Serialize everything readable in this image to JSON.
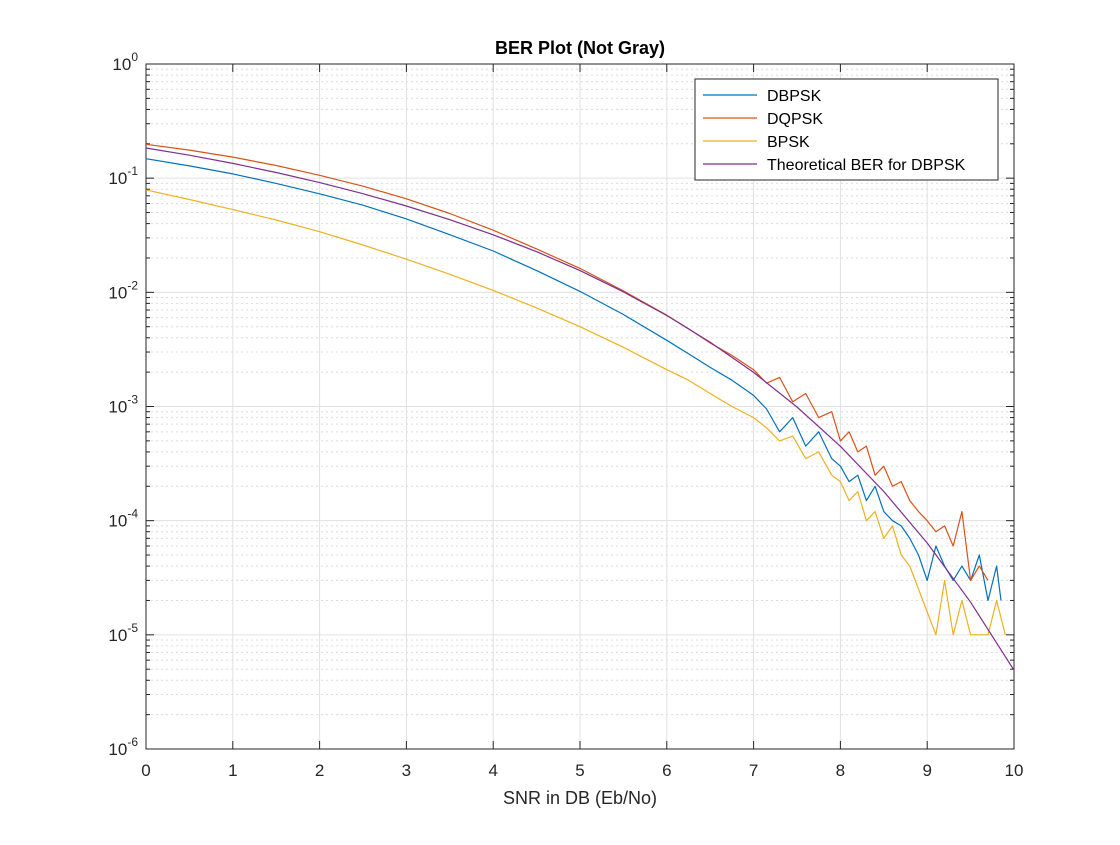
{
  "chart_data": {
    "type": "line",
    "title": "BER Plot (Not Gray)",
    "xlabel": "SNR in DB (Eb/No)",
    "ylabel": "",
    "xlim": [
      0,
      10
    ],
    "ylim": [
      1e-06,
      1
    ],
    "yscale": "log",
    "grid": true,
    "minor_grid": true,
    "legend_position": "top-right",
    "x_ticks": [
      "0",
      "1",
      "2",
      "3",
      "4",
      "5",
      "6",
      "7",
      "8",
      "9",
      "10"
    ],
    "y_ticks": [
      {
        "base": "10",
        "exp": "-6",
        "value": 1e-06
      },
      {
        "base": "10",
        "exp": "-5",
        "value": 1e-05
      },
      {
        "base": "10",
        "exp": "-4",
        "value": 0.0001
      },
      {
        "base": "10",
        "exp": "-3",
        "value": 0.001
      },
      {
        "base": "10",
        "exp": "-2",
        "value": 0.01
      },
      {
        "base": "10",
        "exp": "-1",
        "value": 0.1
      },
      {
        "base": "10",
        "exp": "0",
        "value": 1
      }
    ],
    "series": [
      {
        "name": "DBPSK",
        "color": "#0072BD",
        "x": [
          0,
          0.5,
          1,
          1.5,
          2,
          2.5,
          3,
          3.5,
          4,
          4.5,
          5,
          5.5,
          6,
          6.25,
          6.5,
          6.75,
          7,
          7.15,
          7.3,
          7.45,
          7.6,
          7.75,
          7.9,
          8.0,
          8.1,
          8.2,
          8.3,
          8.4,
          8.5,
          8.6,
          8.7,
          8.8,
          8.9,
          9.0,
          9.1,
          9.2,
          9.3,
          9.4,
          9.5,
          9.6,
          9.7,
          9.8,
          9.85
        ],
        "y": [
          0.148,
          0.128,
          0.109,
          0.09,
          0.073,
          0.058,
          0.044,
          0.032,
          0.023,
          0.0155,
          0.0102,
          0.0064,
          0.0038,
          0.0029,
          0.0022,
          0.0017,
          0.00125,
          0.00095,
          0.0006,
          0.0008,
          0.00045,
          0.0006,
          0.00035,
          0.0003,
          0.00022,
          0.00025,
          0.00015,
          0.0002,
          0.00012,
          0.0001,
          9e-05,
          7e-05,
          5e-05,
          3e-05,
          6e-05,
          4e-05,
          3e-05,
          4e-05,
          3e-05,
          5e-05,
          2e-05,
          4e-05,
          2e-05
        ]
      },
      {
        "name": "DQPSK",
        "color": "#D95319",
        "x": [
          0,
          0.5,
          1,
          1.5,
          2,
          2.5,
          3,
          3.5,
          4,
          4.5,
          5,
          5.5,
          6,
          6.25,
          6.5,
          6.75,
          7,
          7.15,
          7.3,
          7.45,
          7.6,
          7.75,
          7.9,
          8.0,
          8.1,
          8.2,
          8.3,
          8.4,
          8.5,
          8.6,
          8.7,
          8.8,
          8.9,
          9.0,
          9.1,
          9.2,
          9.3,
          9.4,
          9.5,
          9.6,
          9.7
        ],
        "y": [
          0.198,
          0.176,
          0.153,
          0.129,
          0.106,
          0.085,
          0.066,
          0.049,
          0.035,
          0.024,
          0.0162,
          0.0103,
          0.0063,
          0.0048,
          0.0036,
          0.0028,
          0.0021,
          0.0016,
          0.0018,
          0.0011,
          0.0013,
          0.0008,
          0.0009,
          0.0005,
          0.0006,
          0.0004,
          0.00045,
          0.00025,
          0.0003,
          0.0002,
          0.00022,
          0.00015,
          0.00012,
          0.0001,
          8e-05,
          9e-05,
          6e-05,
          0.00012,
          3e-05,
          4e-05,
          3e-05
        ]
      },
      {
        "name": "BPSK",
        "color": "#EDB120",
        "x": [
          0,
          0.5,
          1,
          1.5,
          2,
          2.5,
          3,
          3.5,
          4,
          4.5,
          5,
          5.5,
          6,
          6.25,
          6.5,
          6.75,
          7,
          7.15,
          7.3,
          7.45,
          7.6,
          7.75,
          7.9,
          8.0,
          8.1,
          8.2,
          8.3,
          8.4,
          8.5,
          8.6,
          8.7,
          8.8,
          9.1,
          9.2,
          9.3,
          9.4,
          9.5,
          9.6,
          9.7,
          9.8,
          9.9
        ],
        "y": [
          0.079,
          0.065,
          0.053,
          0.043,
          0.034,
          0.026,
          0.0195,
          0.0144,
          0.0104,
          0.0073,
          0.005,
          0.0033,
          0.0021,
          0.0017,
          0.0013,
          0.001,
          0.0008,
          0.00065,
          0.0005,
          0.00055,
          0.00035,
          0.0004,
          0.00025,
          0.00022,
          0.00015,
          0.00018,
          0.0001,
          0.00012,
          7e-05,
          9e-05,
          5e-05,
          4e-05,
          1e-05,
          3e-05,
          1e-05,
          2e-05,
          1e-05,
          1e-05,
          1e-05,
          2e-05,
          1e-05
        ]
      },
      {
        "name": "Theoretical BER for DBPSK",
        "color": "#7E2F8E",
        "x": [
          0,
          0.5,
          1,
          1.5,
          2,
          2.5,
          3,
          3.5,
          4,
          4.5,
          5,
          5.5,
          6,
          6.5,
          7,
          7.5,
          8,
          8.5,
          9,
          9.5,
          10
        ],
        "y": [
          0.1839,
          0.1588,
          0.1347,
          0.1121,
          0.0915,
          0.0731,
          0.057,
          0.0433,
          0.0319,
          0.0227,
          0.0155,
          0.0101,
          0.00627,
          0.00366,
          0.00199,
          0.00099,
          0.000448,
          0.00018,
          6.37e-05,
          1.93e-05,
          4.9e-06
        ]
      }
    ]
  }
}
